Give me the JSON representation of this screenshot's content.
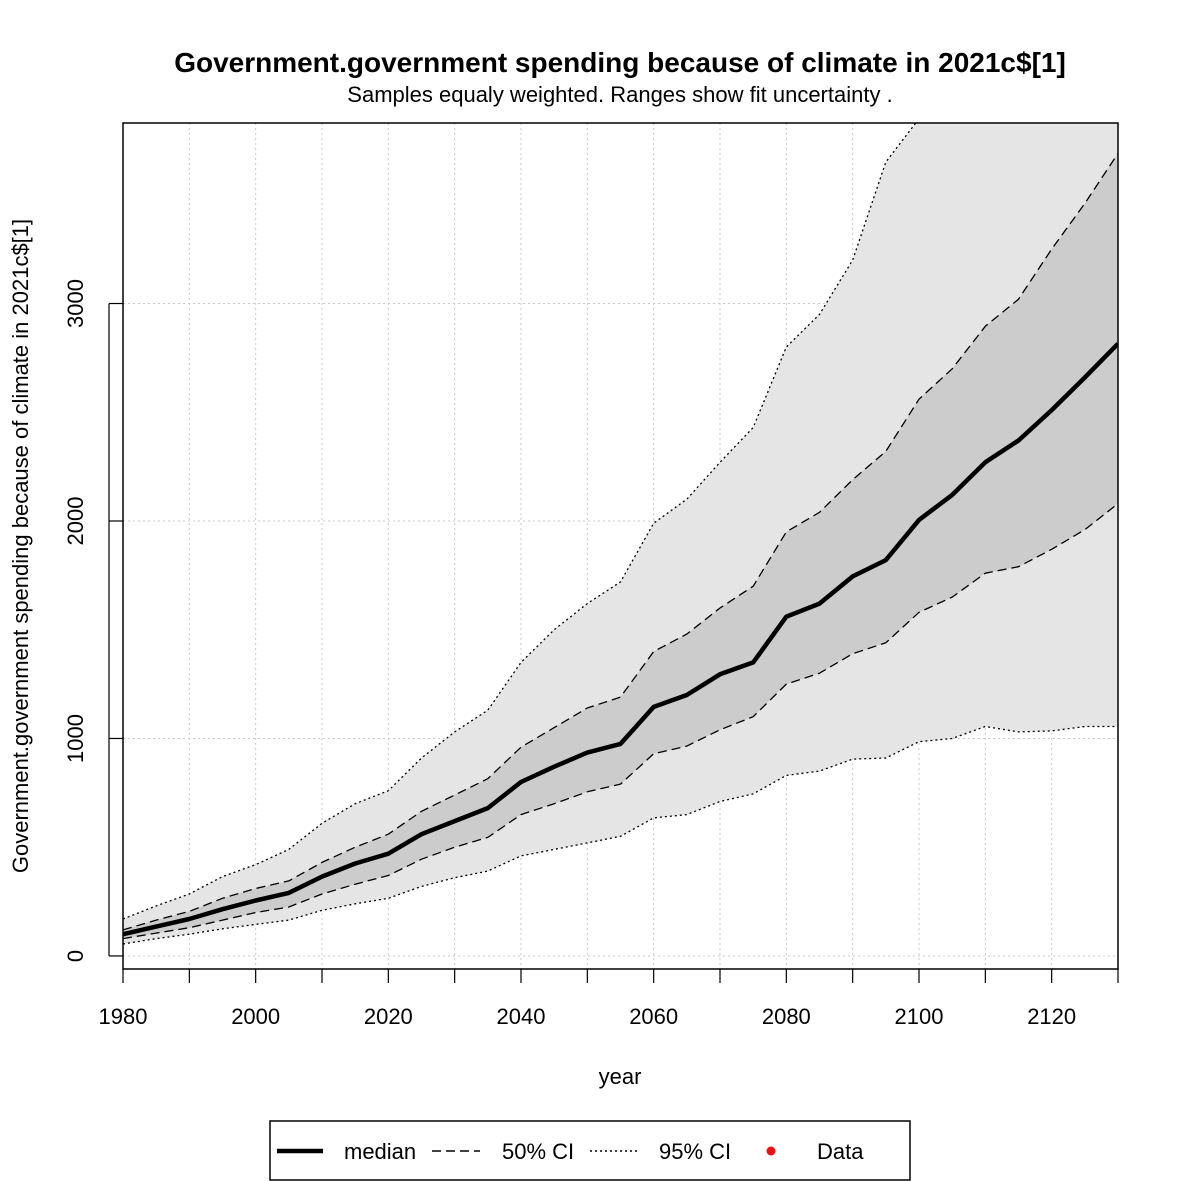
{
  "chart_data": {
    "type": "area",
    "title": "Government.government spending because of climate in 2021c$[1]",
    "subtitle": "Samples equaly weighted. Ranges show  fit uncertainty .",
    "xlabel": "year",
    "ylabel": "Government.government spending because of climate in 2021c$[1]",
    "xlim": [
      1980,
      2130
    ],
    "ylim": [
      -60,
      3830
    ],
    "x_ticks": [
      1980,
      2000,
      2020,
      2040,
      2060,
      2080,
      2100,
      2120
    ],
    "y_ticks": [
      0,
      1000,
      2000,
      3000
    ],
    "grid": true,
    "legend_position": "bottom",
    "x": [
      1980,
      1985,
      1990,
      1995,
      2000,
      2005,
      2010,
      2015,
      2020,
      2025,
      2030,
      2035,
      2040,
      2045,
      2050,
      2055,
      2060,
      2065,
      2070,
      2075,
      2080,
      2085,
      2090,
      2095,
      2100,
      2105,
      2110,
      2115,
      2120,
      2125,
      2130
    ],
    "series": [
      {
        "name": "median",
        "style": "solid",
        "values": [
          100,
          135,
          170,
          215,
          255,
          290,
          365,
          425,
          470,
          560,
          620,
          680,
          800,
          870,
          935,
          975,
          1145,
          1200,
          1295,
          1350,
          1560,
          1620,
          1745,
          1820,
          2005,
          2120,
          2270,
          2370,
          2510,
          2660,
          2815
        ]
      },
      {
        "name": "50% CI upper",
        "style": "dashed",
        "values": [
          120,
          165,
          205,
          265,
          310,
          345,
          430,
          500,
          560,
          665,
          740,
          815,
          960,
          1050,
          1140,
          1190,
          1400,
          1480,
          1600,
          1700,
          1950,
          2040,
          2190,
          2320,
          2560,
          2700,
          2895,
          3020,
          3250,
          3460,
          3690
        ]
      },
      {
        "name": "50% CI lower",
        "style": "dashed",
        "values": [
          80,
          105,
          130,
          165,
          200,
          225,
          285,
          330,
          370,
          445,
          500,
          545,
          650,
          700,
          755,
          790,
          930,
          965,
          1040,
          1100,
          1250,
          1300,
          1390,
          1440,
          1580,
          1650,
          1760,
          1790,
          1870,
          1960,
          2080
        ]
      },
      {
        "name": "95% CI upper",
        "style": "dotted",
        "values": [
          170,
          230,
          285,
          365,
          420,
          490,
          610,
          700,
          760,
          910,
          1030,
          1130,
          1350,
          1500,
          1620,
          1720,
          1990,
          2100,
          2270,
          2430,
          2800,
          2950,
          3200,
          3650,
          3850,
          3850,
          3850,
          3850,
          3850,
          3850,
          3850
        ]
      },
      {
        "name": "95% CI lower",
        "style": "dotted",
        "values": [
          55,
          80,
          100,
          125,
          145,
          165,
          210,
          240,
          265,
          320,
          360,
          390,
          460,
          490,
          520,
          550,
          635,
          650,
          710,
          745,
          830,
          850,
          905,
          910,
          985,
          1000,
          1055,
          1030,
          1035,
          1055,
          1055
        ]
      }
    ],
    "legend": [
      {
        "label": "median",
        "style": "solid-thick"
      },
      {
        "label": "50% CI",
        "style": "dashed"
      },
      {
        "label": "95% CI",
        "style": "dotted"
      },
      {
        "label": "Data",
        "style": "point",
        "color": "#ee1111"
      }
    ],
    "colors": {
      "band95": "#e5e5e5",
      "band50": "#cccccc",
      "grid": "#c8c8c8",
      "line": "#000000",
      "data_point": "#ee1111"
    }
  }
}
